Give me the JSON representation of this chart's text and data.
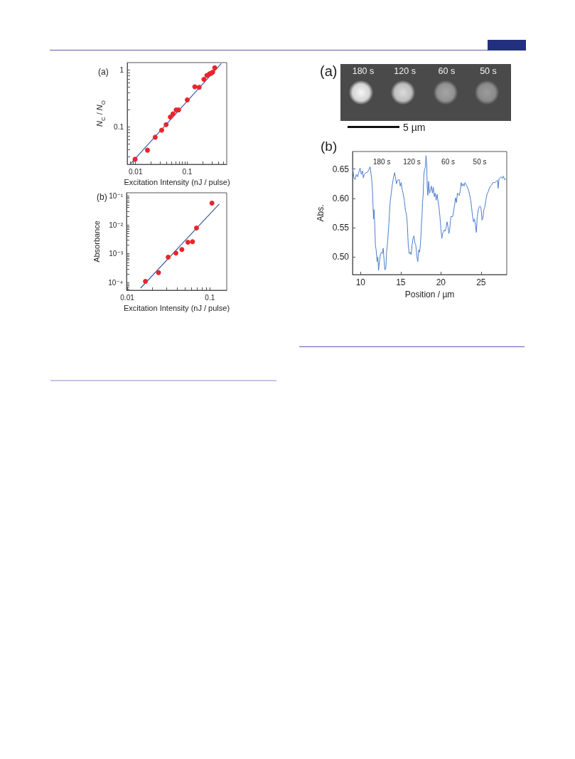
{
  "chart_data": [
    {
      "type": "scatter",
      "title": "(a)",
      "xlabel": "Excitation Intensity (nJ / pulse)",
      "ylabel": "N$_{C}$ / N$_{O}$",
      "log": "xy",
      "marker": "circle",
      "xlim": [
        0.0069,
        0.58
      ],
      "ylim": [
        0.022,
        1.36
      ],
      "xticks": [
        {
          "value": 0.007,
          "label": null
        },
        {
          "value": 0.008,
          "label": null
        },
        {
          "value": 0.009,
          "label": null
        },
        0.01,
        {
          "value": 0.02,
          "label": null
        },
        {
          "value": 0.03,
          "label": null
        },
        {
          "value": 0.04,
          "label": null
        },
        {
          "value": 0.05,
          "label": null
        },
        {
          "value": 0.06,
          "label": null
        },
        {
          "value": 0.07,
          "label": null
        },
        {
          "value": 0.08,
          "label": null
        },
        {
          "value": 0.09,
          "label": null
        },
        0.1,
        {
          "value": 0.2,
          "label": null
        },
        {
          "value": 0.3,
          "label": null
        },
        {
          "value": 0.4,
          "label": null
        },
        {
          "value": 0.5,
          "label": null
        }
      ],
      "yticks": [
        {
          "value": 0.03,
          "label": null
        },
        {
          "value": 0.04,
          "label": null
        },
        {
          "value": 0.05,
          "label": null
        },
        {
          "value": 0.06,
          "label": null
        },
        {
          "value": 0.07,
          "label": null
        },
        {
          "value": 0.08,
          "label": null
        },
        {
          "value": 0.09,
          "label": null
        },
        0.1,
        {
          "value": 0.2,
          "label": null
        },
        {
          "value": 0.3,
          "label": null
        },
        {
          "value": 0.4,
          "label": null
        },
        {
          "value": 0.5,
          "label": null
        },
        {
          "value": 0.6,
          "label": null
        },
        {
          "value": 0.7,
          "label": null
        },
        {
          "value": 0.8,
          "label": null
        },
        {
          "value": 0.9,
          "label": null
        },
        1
      ],
      "series": [
        {
          "type": "scatter",
          "color": "#e8262c",
          "x": [
            0.0098,
            0.017,
            0.024,
            0.032,
            0.039,
            0.047,
            0.053,
            0.061,
            0.068,
            0.1,
            0.14,
            0.17,
            0.21,
            0.24,
            0.27,
            0.29,
            0.31,
            0.34
          ],
          "values": [
            0.027,
            0.039,
            0.066,
            0.088,
            0.11,
            0.15,
            0.17,
            0.2,
            0.2,
            0.3,
            0.51,
            0.5,
            0.69,
            0.81,
            0.86,
            0.88,
            0.92,
            1.1
          ]
        },
        {
          "type": "line",
          "color": "#3a5aa8",
          "marker": "none",
          "x": [
            0.0082,
            0.45
          ],
          "values": [
            0.023,
            1.3
          ]
        }
      ]
    },
    {
      "type": "scatter",
      "title": "(b)",
      "xlabel": "Excitation Intensity (nJ / pulse)",
      "ylabel": "Absorbance",
      "log": "xy",
      "marker": "circle",
      "xlim": [
        0.0098,
        0.16
      ],
      "ylim": [
        5.4e-05,
        0.13
      ],
      "xticks": [
        0.01,
        {
          "value": 0.02,
          "label": null
        },
        {
          "value": 0.03,
          "label": null
        },
        {
          "value": 0.04,
          "label": null
        },
        {
          "value": 0.05,
          "label": null
        },
        {
          "value": 0.06,
          "label": null
        },
        {
          "value": 0.07,
          "label": null
        },
        {
          "value": 0.08,
          "label": null
        },
        {
          "value": 0.09,
          "label": null
        },
        0.1
      ],
      "yticks": [
        {
          "value": 6e-05,
          "label": null
        },
        {
          "value": 7e-05,
          "label": null
        },
        {
          "value": 8e-05,
          "label": null
        },
        {
          "value": 9e-05,
          "label": null
        },
        {
          "value": 0.0001,
          "label": "10⁻⁴"
        },
        {
          "value": 0.0002,
          "label": null
        },
        {
          "value": 0.0003,
          "label": null
        },
        {
          "value": 0.0004,
          "label": null
        },
        {
          "value": 0.0005,
          "label": null
        },
        {
          "value": 0.0006,
          "label": null
        },
        {
          "value": 0.0007,
          "label": null
        },
        {
          "value": 0.0008,
          "label": null
        },
        {
          "value": 0.0009,
          "label": null
        },
        {
          "value": 0.001,
          "label": "10⁻³"
        },
        {
          "value": 0.002,
          "label": null
        },
        {
          "value": 0.003,
          "label": null
        },
        {
          "value": 0.004,
          "label": null
        },
        {
          "value": 0.005,
          "label": null
        },
        {
          "value": 0.006,
          "label": null
        },
        {
          "value": 0.007,
          "label": null
        },
        {
          "value": 0.008,
          "label": null
        },
        {
          "value": 0.009,
          "label": null
        },
        {
          "value": 0.01,
          "label": "10⁻²"
        },
        {
          "value": 0.02,
          "label": null
        },
        {
          "value": 0.03,
          "label": null
        },
        {
          "value": 0.04,
          "label": null
        },
        {
          "value": 0.05,
          "label": null
        },
        {
          "value": 0.06,
          "label": null
        },
        {
          "value": 0.07,
          "label": null
        },
        {
          "value": 0.08,
          "label": null
        },
        {
          "value": 0.09,
          "label": null
        },
        {
          "value": 0.1,
          "label": "10⁻¹"
        }
      ],
      "series": [
        {
          "type": "scatter",
          "color": "#e8262c",
          "x": [
            0.0166,
            0.0239,
            0.0313,
            0.0388,
            0.0458,
            0.0542,
            0.0617,
            0.0689,
            0.106
          ],
          "values": [
            0.00011,
            0.00022,
            0.00076,
            0.00105,
            0.0014,
            0.0025,
            0.0026,
            0.0078,
            0.057
          ]
        },
        {
          "type": "line",
          "color": "#3a5aa8",
          "marker": "none",
          "x": [
            0.0146,
            0.129
          ],
          "values": [
            6.5e-05,
            0.052
          ]
        }
      ]
    },
    {
      "type": "other",
      "title": "(a)",
      "annotations": [
        "180 s",
        "120 s",
        "60 s",
        "50 s",
        "5 µm"
      ]
    },
    {
      "type": "line",
      "title": "(b)",
      "xlabel": "Position / µm",
      "ylabel": "Abs.",
      "xlim": [
        9,
        28.2
      ],
      "ylim": [
        0.47,
        0.68
      ],
      "xticks": [
        10,
        15,
        20,
        25
      ],
      "yticks": [
        {
          "value": 0.5,
          "label": "0.50"
        },
        0.55,
        {
          "value": 0.6,
          "label": "0.60"
        },
        0.65
      ],
      "annotations": [
        "180 s",
        "120 s",
        "60 s",
        "50 s"
      ],
      "x": [
        9.03,
        9.18,
        9.32,
        9.47,
        9.62,
        9.79,
        9.94,
        10.09,
        10.24,
        10.35,
        10.47,
        10.59,
        10.88,
        11.03,
        11.18,
        11.26,
        11.38,
        11.47,
        11.56,
        11.62,
        11.68,
        11.76,
        11.85,
        11.94,
        12.06,
        12.15,
        12.24,
        12.35,
        12.47,
        12.59,
        12.71,
        12.82,
        12.94,
        13.03,
        13.15,
        13.24,
        13.38,
        13.53,
        13.68,
        13.82,
        13.97,
        14.12,
        14.24,
        14.35,
        14.47,
        14.59,
        14.82,
        14.94,
        15.06,
        15.18,
        15.29,
        15.44,
        15.59,
        15.71,
        15.82,
        15.94,
        16.06,
        16.18,
        16.29,
        16.41,
        16.53,
        16.65,
        16.76,
        16.88,
        17.0,
        17.12,
        17.24,
        17.35,
        17.44,
        17.53,
        17.59,
        17.65,
        17.71,
        17.79,
        17.88,
        17.97,
        18.06,
        18.15,
        18.24,
        18.29,
        18.38,
        18.47,
        18.59,
        18.71,
        18.82,
        18.94,
        19.06,
        19.18,
        19.29,
        19.41,
        19.53,
        19.65,
        19.76,
        19.88,
        20.0,
        20.12,
        20.21,
        20.29,
        20.41,
        20.53,
        20.65,
        20.76,
        20.88,
        21.0,
        21.12,
        21.24,
        21.47,
        21.59,
        21.71,
        21.82,
        21.94,
        22.06,
        22.29,
        22.41,
        22.53,
        22.65,
        22.76,
        22.88,
        23.0,
        23.24,
        23.35,
        23.47,
        23.59,
        23.71,
        23.82,
        23.94,
        24.06,
        24.18,
        24.29,
        24.41,
        24.53,
        24.65,
        24.76,
        24.88,
        25.0,
        25.12,
        25.24,
        25.35,
        25.47,
        25.59,
        25.74,
        25.88,
        26.03,
        26.18,
        26.32,
        26.47,
        26.76,
        26.91,
        27.06,
        27.12,
        27.24,
        27.35,
        27.5,
        27.65,
        27.79,
        27.94,
        28.12
      ],
      "series": [
        {
          "color": "#4d7dcc",
          "values": [
            0.65,
            0.635,
            0.632,
            0.641,
            0.637,
            0.645,
            0.652,
            0.641,
            0.647,
            0.635,
            0.641,
            0.643,
            0.645,
            0.649,
            0.654,
            0.647,
            0.633,
            0.617,
            0.585,
            0.565,
            0.581,
            0.556,
            0.52,
            0.512,
            0.492,
            0.5,
            0.477,
            0.492,
            0.504,
            0.508,
            0.506,
            0.515,
            0.492,
            0.478,
            0.482,
            0.508,
            0.528,
            0.558,
            0.593,
            0.609,
            0.625,
            0.637,
            0.644,
            0.635,
            0.625,
            0.631,
            0.632,
            0.621,
            0.627,
            0.615,
            0.609,
            0.597,
            0.579,
            0.573,
            0.556,
            0.52,
            0.506,
            0.508,
            0.504,
            0.52,
            0.532,
            0.536,
            0.524,
            0.52,
            0.502,
            0.492,
            0.512,
            0.508,
            0.52,
            0.54,
            0.56,
            0.569,
            0.593,
            0.605,
            0.641,
            0.649,
            0.653,
            0.673,
            0.657,
            0.621,
            0.605,
            0.629,
            0.609,
            0.615,
            0.621,
            0.609,
            0.619,
            0.603,
            0.609,
            0.597,
            0.607,
            0.595,
            0.585,
            0.569,
            0.548,
            0.532,
            0.54,
            0.542,
            0.546,
            0.544,
            0.55,
            0.56,
            0.552,
            0.54,
            0.55,
            0.569,
            0.569,
            0.579,
            0.589,
            0.601,
            0.593,
            0.609,
            0.605,
            0.613,
            0.627,
            0.621,
            0.625,
            0.621,
            0.627,
            0.621,
            0.617,
            0.613,
            0.605,
            0.597,
            0.585,
            0.569,
            0.56,
            0.565,
            0.556,
            0.542,
            0.569,
            0.581,
            0.585,
            0.587,
            0.583,
            0.563,
            0.567,
            0.581,
            0.585,
            0.597,
            0.607,
            0.611,
            0.617,
            0.621,
            0.623,
            0.627,
            0.627,
            0.629,
            0.631,
            0.617,
            0.633,
            0.635,
            0.637,
            0.634,
            0.638,
            0.632,
            0.633
          ]
        }
      ]
    }
  ]
}
